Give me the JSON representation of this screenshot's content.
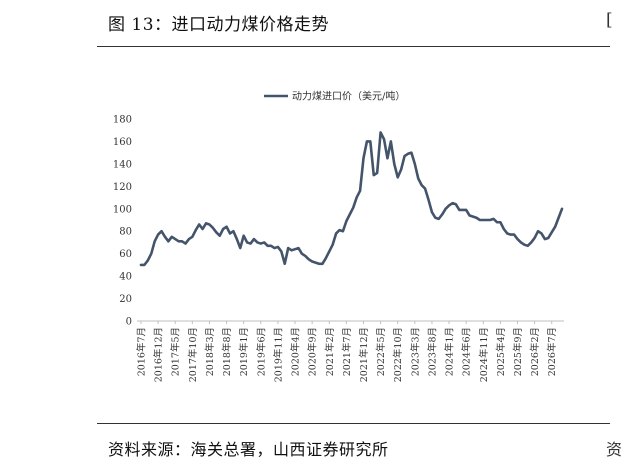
{
  "header": {
    "figure_title": "图 13：进口动力煤价格走势",
    "side_mark_top": "[",
    "side_mark_bottom": "资"
  },
  "footer": {
    "source_note": "资料来源：海关总署，山西证券研究所"
  },
  "colors": {
    "series": "#44546a",
    "axis": "#bfbfbf",
    "text": "#333333"
  },
  "chart_data": {
    "type": "line",
    "title": "",
    "xlabel": "",
    "ylabel": "",
    "legend_position": "top-center",
    "grid": false,
    "ylim": [
      0,
      180
    ],
    "yticks": [
      0,
      20,
      40,
      60,
      80,
      100,
      120,
      140,
      160,
      180
    ],
    "x_tick_labels": [
      "2016年7月",
      "2016年12月",
      "2017年5月",
      "2017年10月",
      "2018年3月",
      "2018年8月",
      "2019年1月",
      "2019年6月",
      "2019年11月",
      "2020年4月",
      "2020年9月",
      "2021年2月",
      "2021年7月",
      "2021年12月",
      "2022年5月",
      "2022年10月",
      "2023年3月",
      "2023年8月",
      "2024年1月",
      "2024年6月",
      "2024年11月",
      "2025年4月",
      "2025年9月",
      "2026年2月",
      "2026年7月"
    ],
    "series": [
      {
        "name": "动力煤进口价（美元/吨）",
        "start_month": "2016-07",
        "values": [
          50,
          50,
          54,
          60,
          71,
          77,
          80,
          75,
          71,
          75,
          73,
          71,
          71,
          69,
          73,
          75,
          81,
          86,
          82,
          87,
          86,
          83,
          79,
          76,
          82,
          84,
          78,
          80,
          73,
          65,
          76,
          70,
          69,
          73,
          70,
          69,
          70,
          67,
          67,
          65,
          66,
          62,
          51,
          65,
          63,
          64,
          65,
          60,
          58,
          55,
          53,
          52,
          51,
          51,
          56,
          62,
          68,
          78,
          81,
          80,
          89,
          95,
          101,
          110,
          116,
          145,
          160,
          160,
          130,
          132,
          168,
          162,
          145,
          160,
          140,
          128,
          135,
          147,
          149,
          150,
          140,
          127,
          121,
          118,
          108,
          97,
          92,
          91,
          95,
          100,
          103,
          105,
          104,
          99,
          99,
          99,
          94,
          93,
          92,
          90,
          90,
          90,
          90,
          91,
          88,
          88,
          82,
          78,
          77,
          77,
          73,
          70,
          68,
          67,
          70,
          74,
          80,
          78,
          73,
          74,
          79,
          84,
          92,
          100
        ]
      }
    ]
  }
}
